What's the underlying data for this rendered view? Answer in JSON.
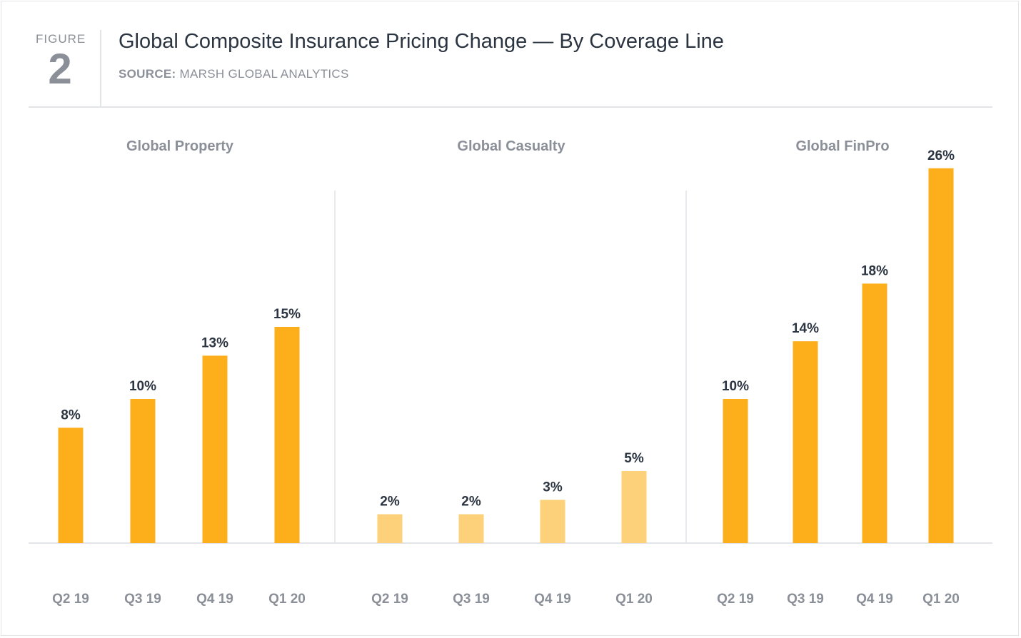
{
  "header": {
    "figure_label": "FIGURE",
    "figure_number": "2",
    "title": "Global Composite Insurance Pricing Change — By Coverage Line",
    "source_key": "SOURCE:",
    "source_value": "MARSH GLOBAL ANALYTICS"
  },
  "colors": {
    "bar": "#fcae1b",
    "bar_light": "#fdd179",
    "label": "#2b3441",
    "axis_text": "#8a8f98",
    "divider": "#e2e4e7"
  },
  "chart_data": [
    {
      "type": "bar",
      "title": "Global Property",
      "categories": [
        "Q2 19",
        "Q3 19",
        "Q4 19",
        "Q1 20"
      ],
      "values": [
        8,
        10,
        13,
        15
      ],
      "labels": [
        "8%",
        "10%",
        "13%",
        "15%"
      ],
      "unit": "%",
      "ylim": [
        0,
        26
      ],
      "bar_shade": "normal"
    },
    {
      "type": "bar",
      "title": "Global Casualty",
      "categories": [
        "Q2 19",
        "Q3 19",
        "Q4 19",
        "Q1 20"
      ],
      "values": [
        2,
        2,
        3,
        5
      ],
      "labels": [
        "2%",
        "2%",
        "3%",
        "5%"
      ],
      "unit": "%",
      "ylim": [
        0,
        26
      ],
      "bar_shade": "light"
    },
    {
      "type": "bar",
      "title": "Global FinPro",
      "categories": [
        "Q2 19",
        "Q3 19",
        "Q4 19",
        "Q1 20"
      ],
      "values": [
        10,
        14,
        18,
        26
      ],
      "labels": [
        "10%",
        "14%",
        "18%",
        "26%"
      ],
      "unit": "%",
      "ylim": [
        0,
        26
      ],
      "bar_shade": "normal"
    }
  ]
}
